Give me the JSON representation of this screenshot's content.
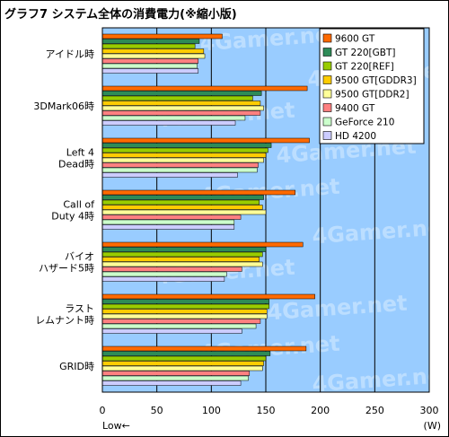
{
  "title": "グラフ7 システム全体の消費電力(※縮小版)",
  "chart_data": {
    "type": "bar",
    "orientation": "horizontal",
    "categories": [
      [
        "アイドル時"
      ],
      [
        "3DMark06時"
      ],
      [
        "Left 4",
        "Dead時"
      ],
      [
        "Call of",
        "Duty 4時"
      ],
      [
        "バイオ",
        "ハザード5時"
      ],
      [
        "ラスト",
        "レムナント時"
      ],
      [
        "GRID時"
      ]
    ],
    "series": [
      {
        "name": "9600 GT",
        "color": "#ff6a00",
        "values": [
          110,
          188,
          190,
          177,
          184,
          195,
          187
        ]
      },
      {
        "name": "GT 220[GBT]",
        "color": "#2e8b57",
        "values": [
          89,
          146,
          155,
          148,
          150,
          153,
          154
        ]
      },
      {
        "name": "GT 220[REF]",
        "color": "#99cc00",
        "values": [
          85,
          138,
          152,
          144,
          147,
          153,
          150
        ]
      },
      {
        "name": "9500 GT[GDDR3]",
        "color": "#ffcc00",
        "values": [
          93,
          145,
          150,
          147,
          144,
          151,
          148
        ]
      },
      {
        "name": "9500 GT[DDR2]",
        "color": "#ffff99",
        "values": [
          94,
          148,
          148,
          150,
          147,
          151,
          147
        ]
      },
      {
        "name": "9400 GT",
        "color": "#ff8080",
        "values": [
          88,
          145,
          143,
          127,
          128,
          145,
          135
        ]
      },
      {
        "name": "GeForce 210",
        "color": "#ccffcc",
        "values": [
          87,
          131,
          142,
          121,
          114,
          141,
          134
        ]
      },
      {
        "name": "HD 4200",
        "color": "#ccccff",
        "values": [
          88,
          122,
          124,
          121,
          112,
          128,
          127
        ]
      }
    ],
    "xlim": [
      0,
      300
    ],
    "xticks": [
      0,
      50,
      100,
      150,
      200,
      250,
      300
    ],
    "xlabel_left": "Low←",
    "xlabel_unit": "(W)",
    "watermark": "4Gamer.net",
    "plot_bg": "#99ccff",
    "legend_position": "top-right"
  }
}
